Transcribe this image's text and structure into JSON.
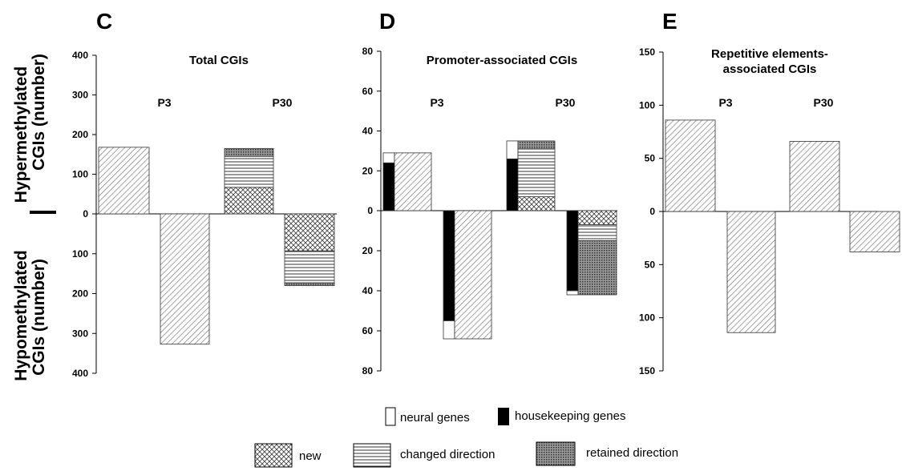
{
  "y_axis_labels": {
    "upper": [
      "Hypermethylated",
      "CGIs (number)"
    ],
    "lower": [
      "Hypomethylated",
      "CGIs (number)"
    ]
  },
  "legend": {
    "gene_types": [
      {
        "label": "neural genes",
        "fill": "white"
      },
      {
        "label": "housekeeping genes",
        "fill": "black"
      }
    ],
    "categories": [
      {
        "label": "new",
        "pattern": "crosshatch"
      },
      {
        "label": "changed direction",
        "pattern": "horizontal"
      },
      {
        "label": "retained direction",
        "pattern": "dots"
      }
    ]
  },
  "chart_data": [
    {
      "panel": "C",
      "type": "bar",
      "title": [
        "Total CGIs"
      ],
      "groups": [
        "P3",
        "P30"
      ],
      "y_ticks": [
        400,
        300,
        200,
        100,
        0,
        100,
        200,
        300,
        400
      ],
      "ylim": [
        -400,
        400
      ],
      "bars": [
        {
          "group": "P3",
          "direction": "hyper",
          "segments": [
            {
              "pattern": "diagonal",
              "value": 168
            }
          ]
        },
        {
          "group": "P3",
          "direction": "hypo",
          "segments": [
            {
              "pattern": "diagonal",
              "value": 327
            }
          ]
        },
        {
          "group": "P30",
          "direction": "hyper",
          "segments": [
            {
              "pattern": "crosshatch",
              "value": 67
            },
            {
              "pattern": "horizontal",
              "value": 78
            },
            {
              "pattern": "dots",
              "value": 20
            }
          ]
        },
        {
          "group": "P30",
          "direction": "hypo",
          "segments": [
            {
              "pattern": "crosshatch",
              "value": 93
            },
            {
              "pattern": "horizontal",
              "value": 80
            },
            {
              "pattern": "dots",
              "value": 7
            }
          ]
        }
      ]
    },
    {
      "panel": "D",
      "type": "bar",
      "title": [
        "Promoter-associated CGIs"
      ],
      "groups": [
        "P3",
        "P30"
      ],
      "y_ticks": [
        80,
        60,
        40,
        20,
        0,
        20,
        40,
        60,
        80
      ],
      "ylim": [
        -80,
        80
      ],
      "bars": [
        {
          "group": "P3",
          "direction": "hyper",
          "kind": "genes",
          "segments": [
            {
              "fill": "black",
              "value": 24
            },
            {
              "fill": "white",
              "value": 5
            }
          ]
        },
        {
          "group": "P3",
          "direction": "hyper",
          "segments": [
            {
              "pattern": "diagonal",
              "value": 29
            }
          ]
        },
        {
          "group": "P3",
          "direction": "hypo",
          "kind": "genes",
          "segments": [
            {
              "fill": "black",
              "value": 55
            },
            {
              "fill": "white",
              "value": 9
            }
          ]
        },
        {
          "group": "P3",
          "direction": "hypo",
          "segments": [
            {
              "pattern": "diagonal",
              "value": 64
            }
          ]
        },
        {
          "group": "P30",
          "direction": "hyper",
          "kind": "genes",
          "segments": [
            {
              "fill": "black",
              "value": 26
            },
            {
              "fill": "white",
              "value": 9
            }
          ]
        },
        {
          "group": "P30",
          "direction": "hyper",
          "segments": [
            {
              "pattern": "crosshatch",
              "value": 7
            },
            {
              "pattern": "horizontal",
              "value": 24
            },
            {
              "pattern": "dots",
              "value": 4
            }
          ]
        },
        {
          "group": "P30",
          "direction": "hypo",
          "kind": "genes",
          "segments": [
            {
              "fill": "black",
              "value": 40
            },
            {
              "fill": "white",
              "value": 2
            }
          ]
        },
        {
          "group": "P30",
          "direction": "hypo",
          "segments": [
            {
              "pattern": "crosshatch",
              "value": 7
            },
            {
              "pattern": "horizontal",
              "value": 8
            },
            {
              "pattern": "dots",
              "value": 27
            }
          ]
        }
      ]
    },
    {
      "panel": "E",
      "type": "bar",
      "title": [
        "Repetitive elements-",
        "associated CGIs"
      ],
      "groups": [
        "P3",
        "P30"
      ],
      "y_ticks": [
        150,
        100,
        50,
        0,
        50,
        100,
        150
      ],
      "ylim": [
        -150,
        150
      ],
      "bars": [
        {
          "group": "P3",
          "direction": "hyper",
          "segments": [
            {
              "pattern": "diagonal",
              "value": 86
            }
          ]
        },
        {
          "group": "P3",
          "direction": "hypo",
          "segments": [
            {
              "pattern": "diagonal",
              "value": 114
            }
          ]
        },
        {
          "group": "P30",
          "direction": "hyper",
          "segments": [
            {
              "pattern": "diagonal",
              "value": 66
            }
          ]
        },
        {
          "group": "P30",
          "direction": "hypo",
          "segments": [
            {
              "pattern": "diagonal",
              "value": 38
            }
          ]
        }
      ]
    }
  ]
}
